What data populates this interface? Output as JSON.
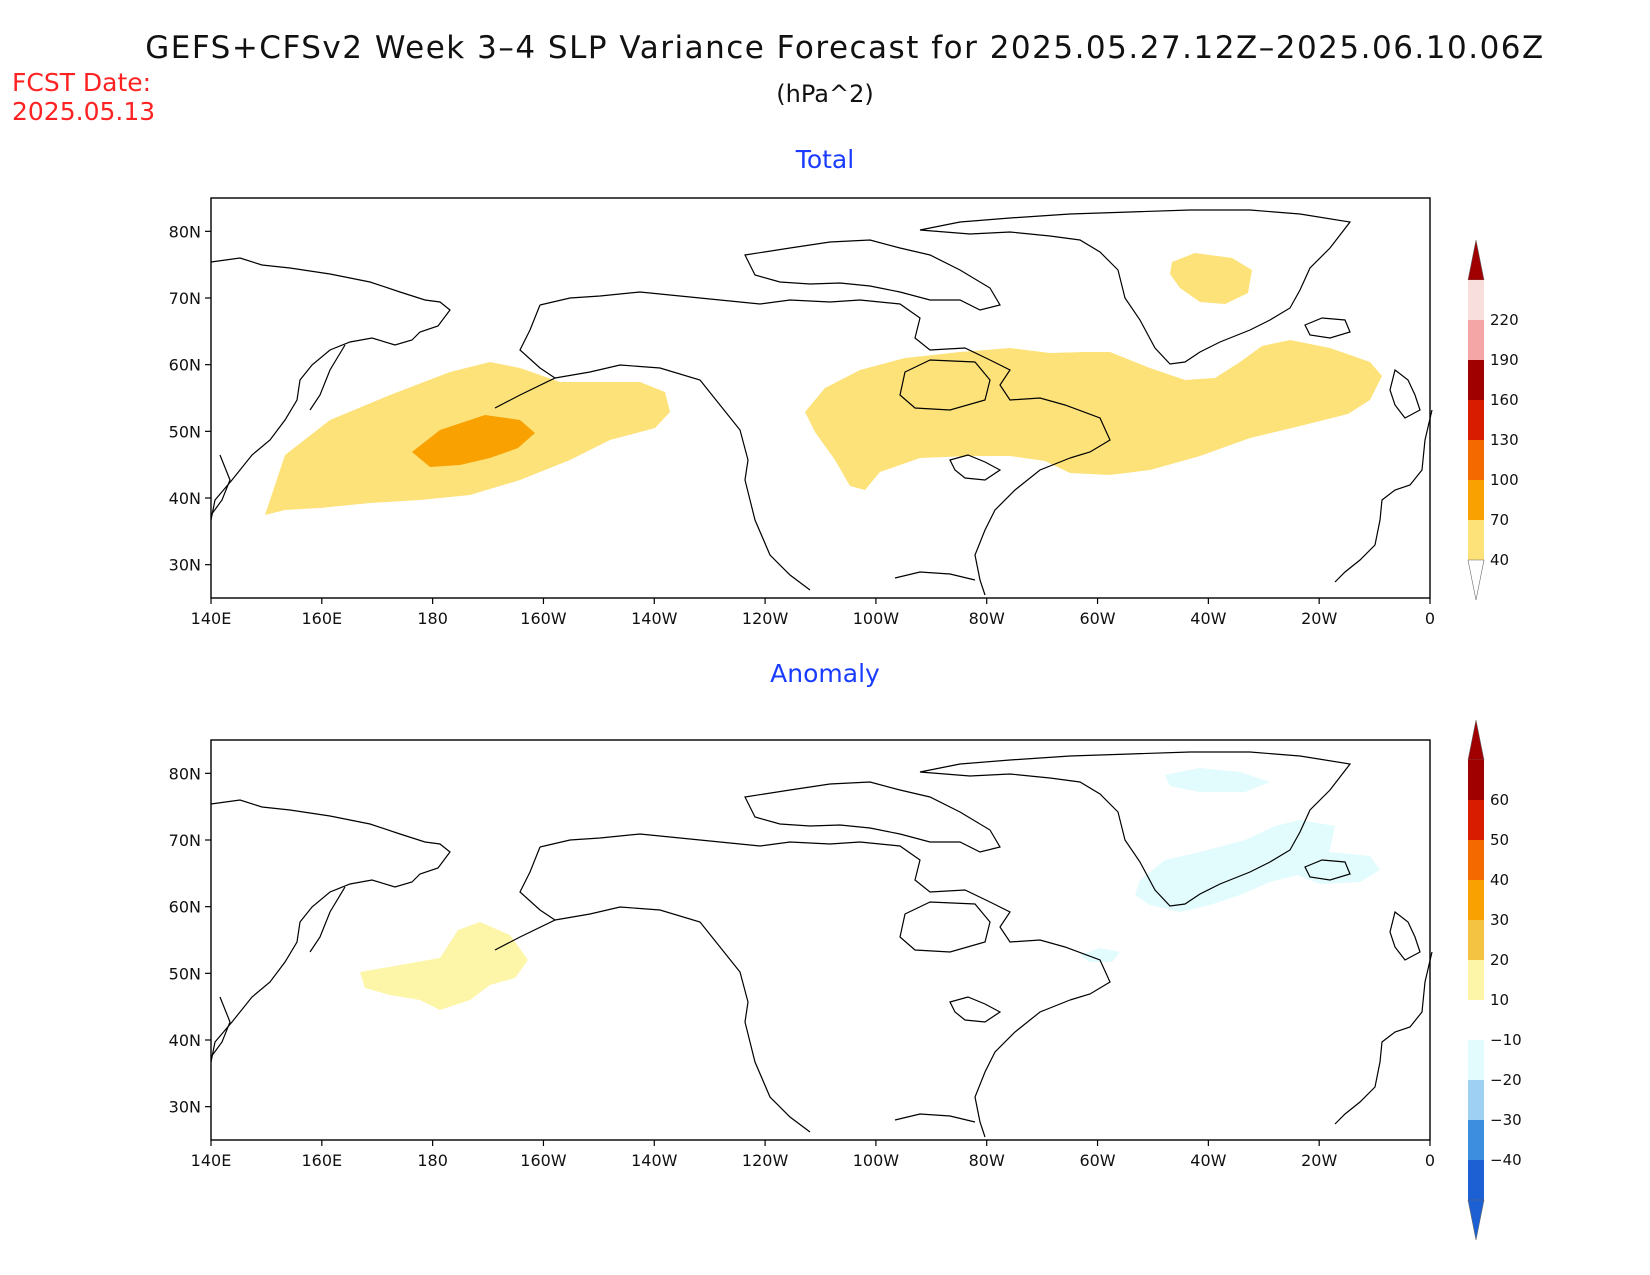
{
  "title": "GEFS+CFSv2 Week 3–4 SLP Variance Forecast for 2025.05.27.12Z–2025.06.10.06Z",
  "units": "(hPa^2)",
  "fcst_label": "FCST Date:",
  "fcst_date": "2025.05.13",
  "map": {
    "lon_ticks": [
      "140E",
      "160E",
      "180",
      "160W",
      "140W",
      "120W",
      "100W",
      "80W",
      "60W",
      "40W",
      "20W",
      "0"
    ],
    "lat_ticks": [
      "80N",
      "70N",
      "60N",
      "50N",
      "40N",
      "30N"
    ],
    "lon_range_deg_east": [
      140,
      360
    ],
    "lat_range": [
      25,
      85
    ]
  },
  "panels": [
    {
      "name": "Total",
      "legend": {
        "levels": [
          "220",
          "190",
          "160",
          "130",
          "100",
          "70",
          "40"
        ],
        "colors": [
          "#f9dede",
          "#f4a6a6",
          "#a00000",
          "#d81c00",
          "#f56a00",
          "#f9a100",
          "#fde27a"
        ]
      }
    },
    {
      "name": "Anomaly",
      "legend": {
        "levels": [
          "60",
          "50",
          "40",
          "30",
          "20",
          "10",
          "−10",
          "−20",
          "−30",
          "−40"
        ],
        "colors": [
          "#a00000",
          "#d81c00",
          "#f56a00",
          "#f9a100",
          "#f5c342",
          "#fdf5a8",
          "#ffffff",
          "#e2fbfd",
          "#9dd0f3",
          "#3e8ee0",
          "#1c60d4"
        ]
      }
    }
  ]
}
